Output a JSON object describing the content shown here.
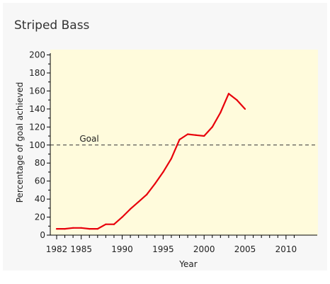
{
  "title": "Striped Bass",
  "colors": {
    "plot_bg": "#fffbdc",
    "line": "#e8000b",
    "axis": "#000000",
    "card_bg": "#f7f7f7"
  },
  "chart_data": {
    "type": "line",
    "title": "Striped Bass",
    "xlabel": "Year",
    "ylabel": "Percentage of goal achieved",
    "xlim": [
      1982,
      2012
    ],
    "ylim": [
      0,
      202
    ],
    "xticks": [
      1982,
      1985,
      1990,
      1995,
      2000,
      2005,
      2010
    ],
    "yticks": [
      0,
      20,
      40,
      60,
      80,
      100,
      120,
      140,
      160,
      180,
      200
    ],
    "grid": false,
    "reference_line": {
      "label": "Goal",
      "y": 100,
      "style": "dashed"
    },
    "series": [
      {
        "x": [
          1982,
          1983,
          1984,
          1985,
          1986,
          1987,
          1988,
          1989,
          1990,
          1991,
          1992,
          1993,
          1994,
          1995,
          1996,
          1997,
          1998,
          1999,
          2000,
          2001,
          2002,
          2003,
          2004,
          2005
        ],
        "y": [
          7,
          7,
          8,
          8,
          7,
          7,
          12,
          12,
          20,
          29,
          37,
          45,
          57,
          70,
          85,
          106,
          112,
          111,
          110,
          120,
          136,
          157,
          150,
          140
        ]
      }
    ]
  }
}
